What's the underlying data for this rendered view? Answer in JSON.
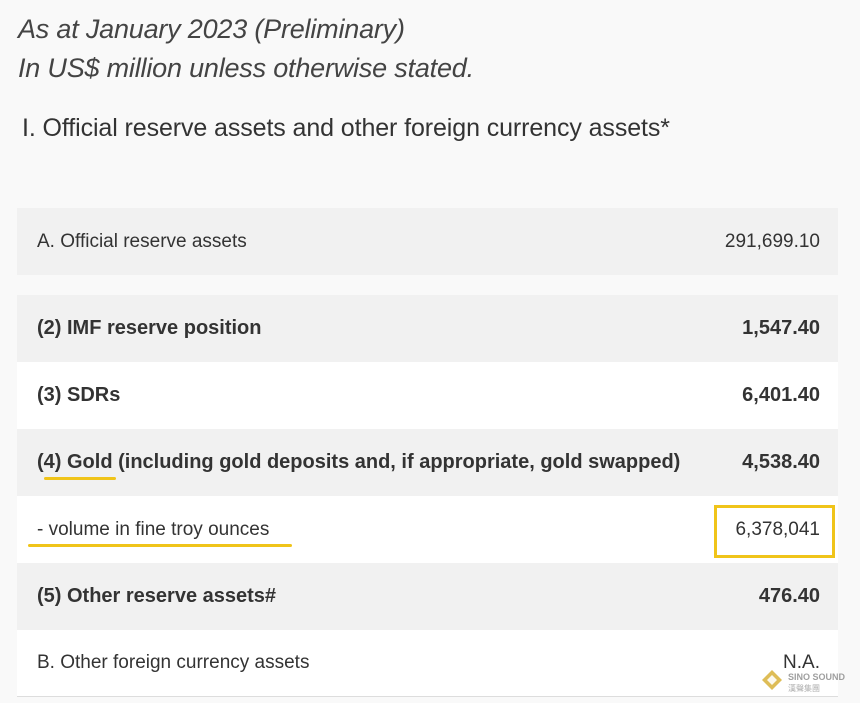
{
  "header": {
    "line1": "As at January 2023 (Preliminary)",
    "line2": "In US$ million unless otherwise stated."
  },
  "section_title": "I. Official reserve assets and other foreign currency assets*",
  "rows": [
    {
      "label": "A. Official reserve assets",
      "value": "291,699.10"
    },
    {
      "label": "(2) IMF reserve position",
      "value": "1,547.40"
    },
    {
      "label": "(3) SDRs",
      "value": "6,401.40"
    },
    {
      "label_prefix": "(4) ",
      "label_gold": "Gold",
      "label_rest": " (including gold deposits and, if appropriate, gold swapped)",
      "value": "4,538.40"
    },
    {
      "label": "- volume in fine troy ounces",
      "value": "6,378,041"
    },
    {
      "label": "(5) Other reserve assets#",
      "value": "476.40"
    },
    {
      "label": "B. Other foreign currency assets",
      "value": "N.A."
    }
  ],
  "watermark": {
    "text": "SINO SOUND",
    "subtext": "漢聲集團"
  },
  "colors": {
    "highlight": "#f0c419"
  }
}
